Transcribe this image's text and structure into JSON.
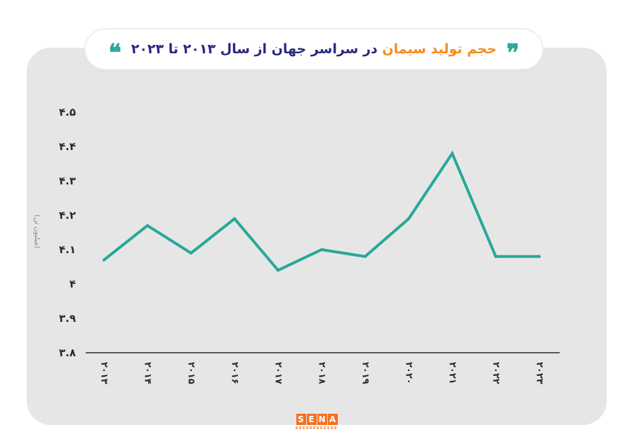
{
  "colors": {
    "line": "#27a899",
    "accent": "#f68a1f",
    "title_dark": "#2a2880",
    "panel": "#e7e6e6"
  },
  "title": {
    "quote_open": "❞",
    "quote_close": "❝",
    "accent": "حجم تولید سیمان",
    "main": "در سراسر جهان از سال ۲۰۱۳ تا ۲۰۲۳"
  },
  "logo": {
    "letters": [
      "S",
      "E",
      "N",
      "A"
    ]
  },
  "chart_data": {
    "type": "line",
    "title": "حجم تولید سیمان در سراسر جهان از سال ۲۰۱۳ تا ۲۰۲۳",
    "ylabel": "(میلیون تن)",
    "xlabel": "",
    "categories": [
      "۲۰۱۳",
      "۲۰۱۴",
      "۲۰۱۵",
      "۲۰۱۶",
      "۲۰۱۷",
      "۲۰۱۸",
      "۲۰۱۹",
      "۲۰۲۰",
      "۲۰۲۱",
      "۲۰۲۲",
      "۲۰۲۳"
    ],
    "y_tick_labels": [
      "۳.۸",
      "۳.۹",
      "۴",
      "۴.۱",
      "۴.۲",
      "۴.۳",
      "۴.۴",
      "۴.۵"
    ],
    "y_tick_values": [
      3.8,
      3.9,
      4.0,
      4.1,
      4.2,
      4.3,
      4.4,
      4.5
    ],
    "ylim": [
      3.8,
      4.5
    ],
    "grid": false,
    "series": [
      {
        "values": [
          4.07,
          4.17,
          4.09,
          4.19,
          4.04,
          4.1,
          4.08,
          4.19,
          4.38,
          4.08,
          4.08
        ]
      }
    ]
  }
}
